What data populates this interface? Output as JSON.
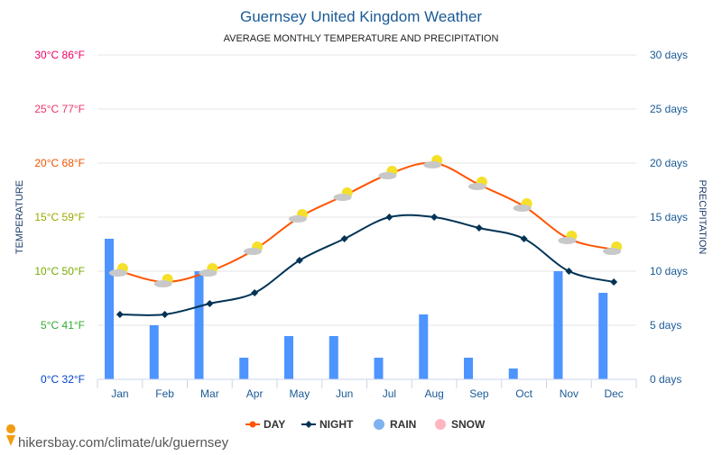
{
  "chart_data": {
    "type": "line+bar",
    "title": "Guernsey United Kingdom Weather",
    "subtitle": "AVERAGE MONTHLY TEMPERATURE AND PRECIPITATION",
    "ylabel_left": "TEMPERATURE",
    "ylabel_right": "PRECIPITATION",
    "categories": [
      "Jan",
      "Feb",
      "Mar",
      "Apr",
      "May",
      "Jun",
      "Jul",
      "Aug",
      "Sep",
      "Oct",
      "Nov",
      "Dec"
    ],
    "left_ticks": [
      "0°C 32°F",
      "5°C 41°F",
      "10°C 50°F",
      "15°C 59°F",
      "20°C 68°F",
      "25°C 77°F",
      "30°C 86°F"
    ],
    "left_tick_colors": [
      "#0044cc",
      "#33aa33",
      "#77aa00",
      "#99aa00",
      "#ee5500",
      "#ee3366",
      "#ee0066"
    ],
    "right_ticks": [
      "0 days",
      "5 days",
      "10 days",
      "15 days",
      "20 days",
      "25 days",
      "30 days"
    ],
    "ylim": [
      0,
      30
    ],
    "grid": true,
    "legend_position": "bottom",
    "series": [
      {
        "name": "DAY",
        "type": "line",
        "color": "#ff5500",
        "values": [
          10,
          9,
          10,
          12,
          15,
          17,
          19,
          20,
          18,
          16,
          13,
          12
        ]
      },
      {
        "name": "NIGHT",
        "type": "line",
        "color": "#003355",
        "values": [
          6,
          6,
          7,
          8,
          11,
          13,
          15,
          15,
          14,
          13,
          10,
          9
        ]
      },
      {
        "name": "RAIN",
        "type": "bar",
        "color": "#4d94ff",
        "values": [
          13,
          5,
          10,
          2,
          4,
          4,
          2,
          6,
          2,
          1,
          10,
          8
        ]
      },
      {
        "name": "SNOW",
        "type": "bar",
        "color": "#ffb6c1",
        "values": [
          0,
          0,
          0,
          0,
          0,
          0,
          0,
          0,
          0,
          0,
          0,
          0
        ]
      }
    ]
  },
  "footer": {
    "url": "hikersbay.com/climate/uk/guernsey"
  }
}
